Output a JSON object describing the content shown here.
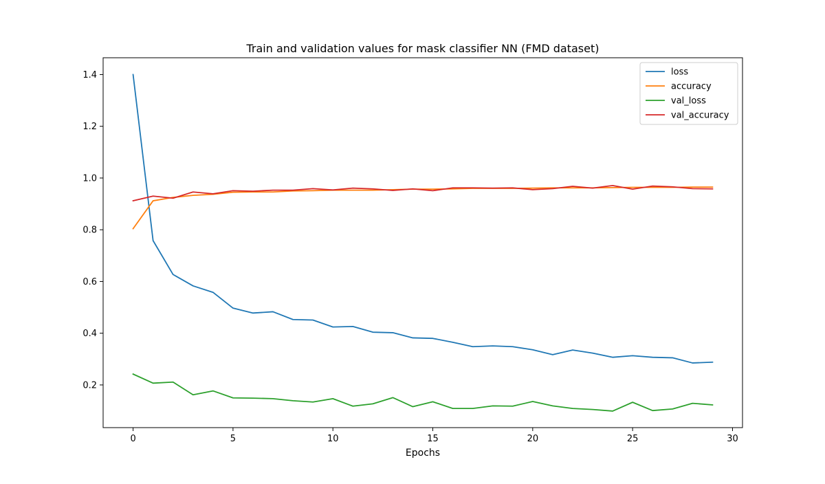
{
  "chart_data": {
    "type": "line",
    "title": "Train and validation values for mask classifier NN (FMD dataset)",
    "xlabel": "Epochs",
    "ylabel": "",
    "xlim": [
      -1.5,
      30.5
    ],
    "ylim": [
      0.035,
      1.465
    ],
    "xticks": [
      0,
      5,
      10,
      15,
      20,
      25,
      30
    ],
    "yticks": [
      0.2,
      0.4,
      0.6,
      0.8,
      1.0,
      1.2,
      1.4
    ],
    "grid": false,
    "legend": "top-right",
    "x": [
      0,
      1,
      2,
      3,
      4,
      5,
      6,
      7,
      8,
      9,
      10,
      11,
      12,
      13,
      14,
      15,
      16,
      17,
      18,
      19,
      20,
      21,
      22,
      23,
      24,
      25,
      26,
      27,
      28,
      29
    ],
    "series": [
      {
        "name": "loss",
        "color": "#1f77b4",
        "values": [
          1.4,
          0.758,
          0.627,
          0.583,
          0.558,
          0.497,
          0.478,
          0.483,
          0.453,
          0.451,
          0.424,
          0.426,
          0.404,
          0.402,
          0.382,
          0.38,
          0.365,
          0.348,
          0.351,
          0.348,
          0.336,
          0.317,
          0.335,
          0.323,
          0.307,
          0.313,
          0.307,
          0.305,
          0.285,
          0.288
        ]
      },
      {
        "name": "accuracy",
        "color": "#ff7f0e",
        "values": [
          0.804,
          0.912,
          0.925,
          0.933,
          0.937,
          0.945,
          0.946,
          0.946,
          0.95,
          0.951,
          0.953,
          0.953,
          0.953,
          0.955,
          0.957,
          0.957,
          0.958,
          0.96,
          0.96,
          0.96,
          0.961,
          0.962,
          0.962,
          0.962,
          0.963,
          0.964,
          0.964,
          0.964,
          0.965,
          0.965
        ]
      },
      {
        "name": "val_loss",
        "color": "#2ca02c",
        "values": [
          0.242,
          0.207,
          0.211,
          0.162,
          0.177,
          0.15,
          0.149,
          0.147,
          0.139,
          0.134,
          0.147,
          0.118,
          0.127,
          0.151,
          0.116,
          0.135,
          0.109,
          0.109,
          0.119,
          0.118,
          0.136,
          0.119,
          0.109,
          0.105,
          0.099,
          0.133,
          0.101,
          0.107,
          0.129,
          0.123
        ]
      },
      {
        "name": "val_accuracy",
        "color": "#d62728",
        "values": [
          0.912,
          0.93,
          0.922,
          0.946,
          0.939,
          0.951,
          0.949,
          0.953,
          0.953,
          0.959,
          0.954,
          0.961,
          0.958,
          0.952,
          0.958,
          0.951,
          0.962,
          0.962,
          0.961,
          0.962,
          0.955,
          0.959,
          0.968,
          0.961,
          0.971,
          0.957,
          0.969,
          0.966,
          0.959,
          0.958
        ]
      }
    ]
  }
}
